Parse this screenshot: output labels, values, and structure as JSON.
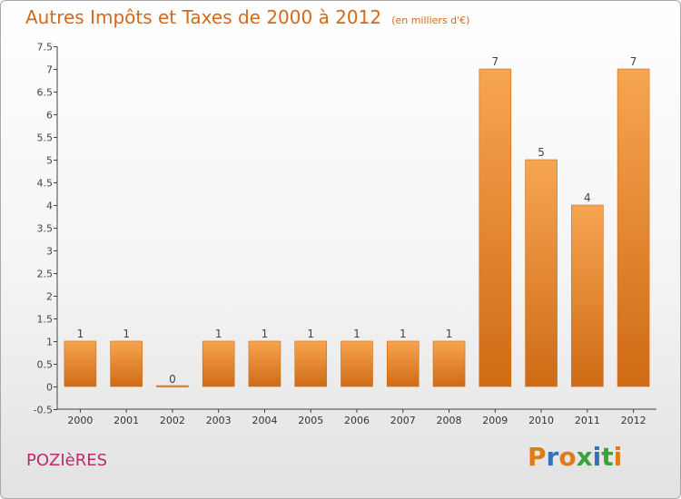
{
  "title": "Autres Impôts et Taxes de 2000 à 2012",
  "unit": "(en milliers d'€)",
  "commune": "POZIèRES",
  "logo": {
    "text": "Proxiti",
    "letters": [
      "P",
      "r",
      "o",
      "x",
      "i",
      "t",
      "i"
    ],
    "colors": [
      "#e07b1c",
      "#2f74b8",
      "#e07b1c",
      "#3aa33a",
      "#2f74b8",
      "#3aa33a",
      "#e07b1c"
    ]
  },
  "colors": {
    "bar_light": "#f7a552",
    "bar_dark": "#cf6b14",
    "title": "#d2691e",
    "commune": "#c0286f"
  },
  "chart_data": {
    "type": "bar",
    "categories": [
      "2000",
      "2001",
      "2002",
      "2003",
      "2004",
      "2005",
      "2006",
      "2007",
      "2008",
      "2009",
      "2010",
      "2011",
      "2012"
    ],
    "values": [
      1,
      1,
      0,
      1,
      1,
      1,
      1,
      1,
      1,
      7,
      5,
      4,
      7
    ],
    "data_labels": [
      "1",
      "1",
      "0",
      "1",
      "1",
      "1",
      "1",
      "1",
      "1",
      "7",
      "5",
      "4",
      "7"
    ],
    "ylim": [
      -0.5,
      7.5
    ],
    "yticks": [
      -0.5,
      0,
      0.5,
      1,
      1.5,
      2,
      2.5,
      3,
      3.5,
      4,
      4.5,
      5,
      5.5,
      6,
      6.5,
      7,
      7.5
    ],
    "ytick_labels": [
      "-0.5",
      "0",
      "0.5",
      "1",
      "1.5",
      "2",
      "2.5",
      "3",
      "3.5",
      "4",
      "4.5",
      "5",
      "5.5",
      "6",
      "6.5",
      "7",
      "7.5"
    ],
    "xlabel": "",
    "ylabel": "",
    "grid": false,
    "legend": "none"
  }
}
